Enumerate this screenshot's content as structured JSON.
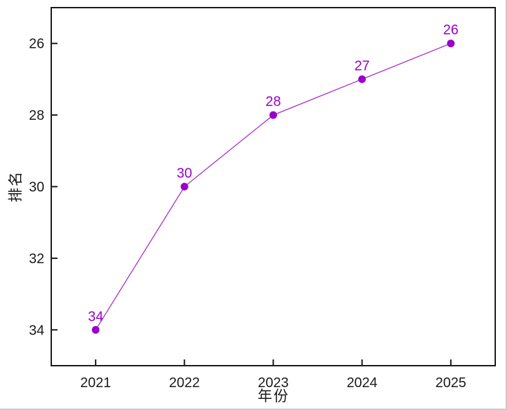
{
  "chart_data": {
    "type": "line",
    "title": "",
    "xlabel": "年份",
    "ylabel": "排名",
    "x": [
      2021,
      2022,
      2023,
      2024,
      2025
    ],
    "values": [
      34,
      30,
      28,
      27,
      26
    ],
    "point_labels": [
      "34",
      "30",
      "28",
      "27",
      "26"
    ],
    "xticks": [
      "2021",
      "2022",
      "2023",
      "2024",
      "2025"
    ],
    "yticks": [
      "26",
      "28",
      "30",
      "32",
      "34"
    ],
    "xlim": [
      2020.5,
      2025.5
    ],
    "ylim": [
      35,
      25
    ],
    "y_axis_inverted": true,
    "grid": false,
    "legend": "none",
    "marker": "circle",
    "colors": {
      "accent": "#9900CC",
      "line": "#AB2FC9",
      "axis": "#1a1a1a",
      "tick_text": "#1a1a1a",
      "background": "#ffffff"
    }
  }
}
